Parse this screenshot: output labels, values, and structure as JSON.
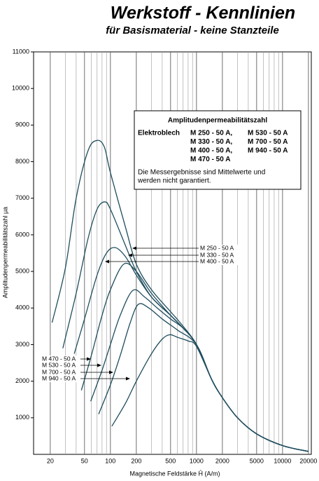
{
  "chart_data": {
    "type": "line",
    "title": "Werkstoff - Kennlinien",
    "subtitle": "für Basismaterial - keine Stanzteile",
    "xlabel": "Magnetische Feldstärke Ĥ (A/m)",
    "ylabel": "Amplitudenpermeabilitätszahl μa",
    "log_x": true,
    "xlim": [
      12.8,
      21600
    ],
    "xticks": [
      20,
      50,
      100,
      200,
      500,
      1000,
      2000,
      5000,
      10000,
      20000
    ],
    "ylim": [
      0,
      11000
    ],
    "yticks": [
      1000,
      2000,
      3000,
      4000,
      5000,
      6000,
      7000,
      8000,
      9000,
      10000,
      11000
    ],
    "grid_x": true,
    "series": [
      {
        "name": "M 250 - 50 A",
        "color": "#1f4d5e",
        "x": [
          21,
          30,
          40,
          55,
          70,
          85,
          100,
          150,
          200,
          300,
          500,
          700,
          1000,
          1500,
          2000,
          3000,
          5000,
          10000,
          20000
        ],
        "values": [
          3600,
          5100,
          7000,
          8300,
          8580,
          8400,
          7700,
          6200,
          5200,
          4500,
          3900,
          3500,
          3000,
          2050,
          1550,
          1000,
          560,
          240,
          80
        ]
      },
      {
        "name": "M 330 - 50 A",
        "color": "#1f4d5e",
        "x": [
          28,
          40,
          55,
          70,
          86,
          100,
          150,
          200,
          300,
          500,
          700,
          1000,
          1500,
          2000,
          3000,
          5000,
          10000,
          20000
        ],
        "values": [
          2900,
          4400,
          5900,
          6700,
          6900,
          6700,
          5700,
          5000,
          4300,
          3800,
          3450,
          3000,
          2050,
          1550,
          1000,
          560,
          240,
          80
        ]
      },
      {
        "name": "M 400 - 50 A",
        "color": "#1f4d5e",
        "x": [
          38,
          50,
          70,
          90,
          114,
          150,
          200,
          300,
          500,
          700,
          1000,
          1500,
          2000,
          3000,
          5000,
          10000,
          20000
        ],
        "values": [
          2750,
          3700,
          4900,
          5500,
          5650,
          5400,
          4900,
          4300,
          3800,
          3450,
          3000,
          2050,
          1550,
          1000,
          560,
          240,
          80
        ]
      },
      {
        "name": "M 470 - 50 A",
        "color": "#1f4d5e",
        "x": [
          46,
          60,
          80,
          100,
          143,
          200,
          300,
          500,
          700,
          1000,
          1500,
          2000,
          3000,
          5000,
          10000,
          20000
        ],
        "values": [
          1750,
          2700,
          3800,
          4500,
          5200,
          5000,
          4400,
          3800,
          3450,
          3000,
          2050,
          1550,
          1000,
          560,
          240,
          80
        ]
      },
      {
        "name": "M 530 - 50 A",
        "color": "#1f4d5e",
        "x": [
          59,
          80,
          100,
          130,
          182,
          250,
          350,
          500,
          700,
          1000,
          1500,
          2000,
          3000,
          5000,
          10000,
          20000
        ],
        "values": [
          1450,
          2300,
          3000,
          3800,
          4480,
          4300,
          4000,
          3700,
          3450,
          3000,
          2050,
          1550,
          1000,
          560,
          240,
          80
        ]
      },
      {
        "name": "M 700 - 50 A",
        "color": "#1f4d5e",
        "x": [
          73,
          100,
          130,
          170,
          211,
          280,
          400,
          600,
          1000,
          1500,
          2000,
          3000,
          5000,
          10000,
          20000
        ],
        "values": [
          1100,
          1900,
          2700,
          3600,
          4100,
          4000,
          3700,
          3400,
          3000,
          2050,
          1550,
          1000,
          560,
          240,
          80
        ]
      },
      {
        "name": "M 940 - 50 A",
        "color": "#1f4d5e",
        "x": [
          104,
          150,
          200,
          300,
          400,
          490,
          600,
          800,
          1000,
          1500,
          2000,
          3000,
          5000,
          10000,
          20000
        ],
        "values": [
          770,
          1400,
          2000,
          2750,
          3150,
          3270,
          3200,
          3100,
          2950,
          2050,
          1550,
          1000,
          560,
          240,
          80
        ]
      }
    ],
    "legend": {
      "title": "Amplitudenpermeabilitätszahl",
      "label": "Elektroblech",
      "items": [
        "M 250 - 50 A,",
        "M 530 - 50 A",
        "M 330 - 50 A,",
        "M 700 - 50 A",
        "M 400 - 50 A,",
        "M 940 - 50 A",
        "M 470 - 50 A"
      ],
      "note": [
        "Die Messergebnisse sind Mittelwerte und",
        "werden nicht garantiert."
      ]
    }
  }
}
